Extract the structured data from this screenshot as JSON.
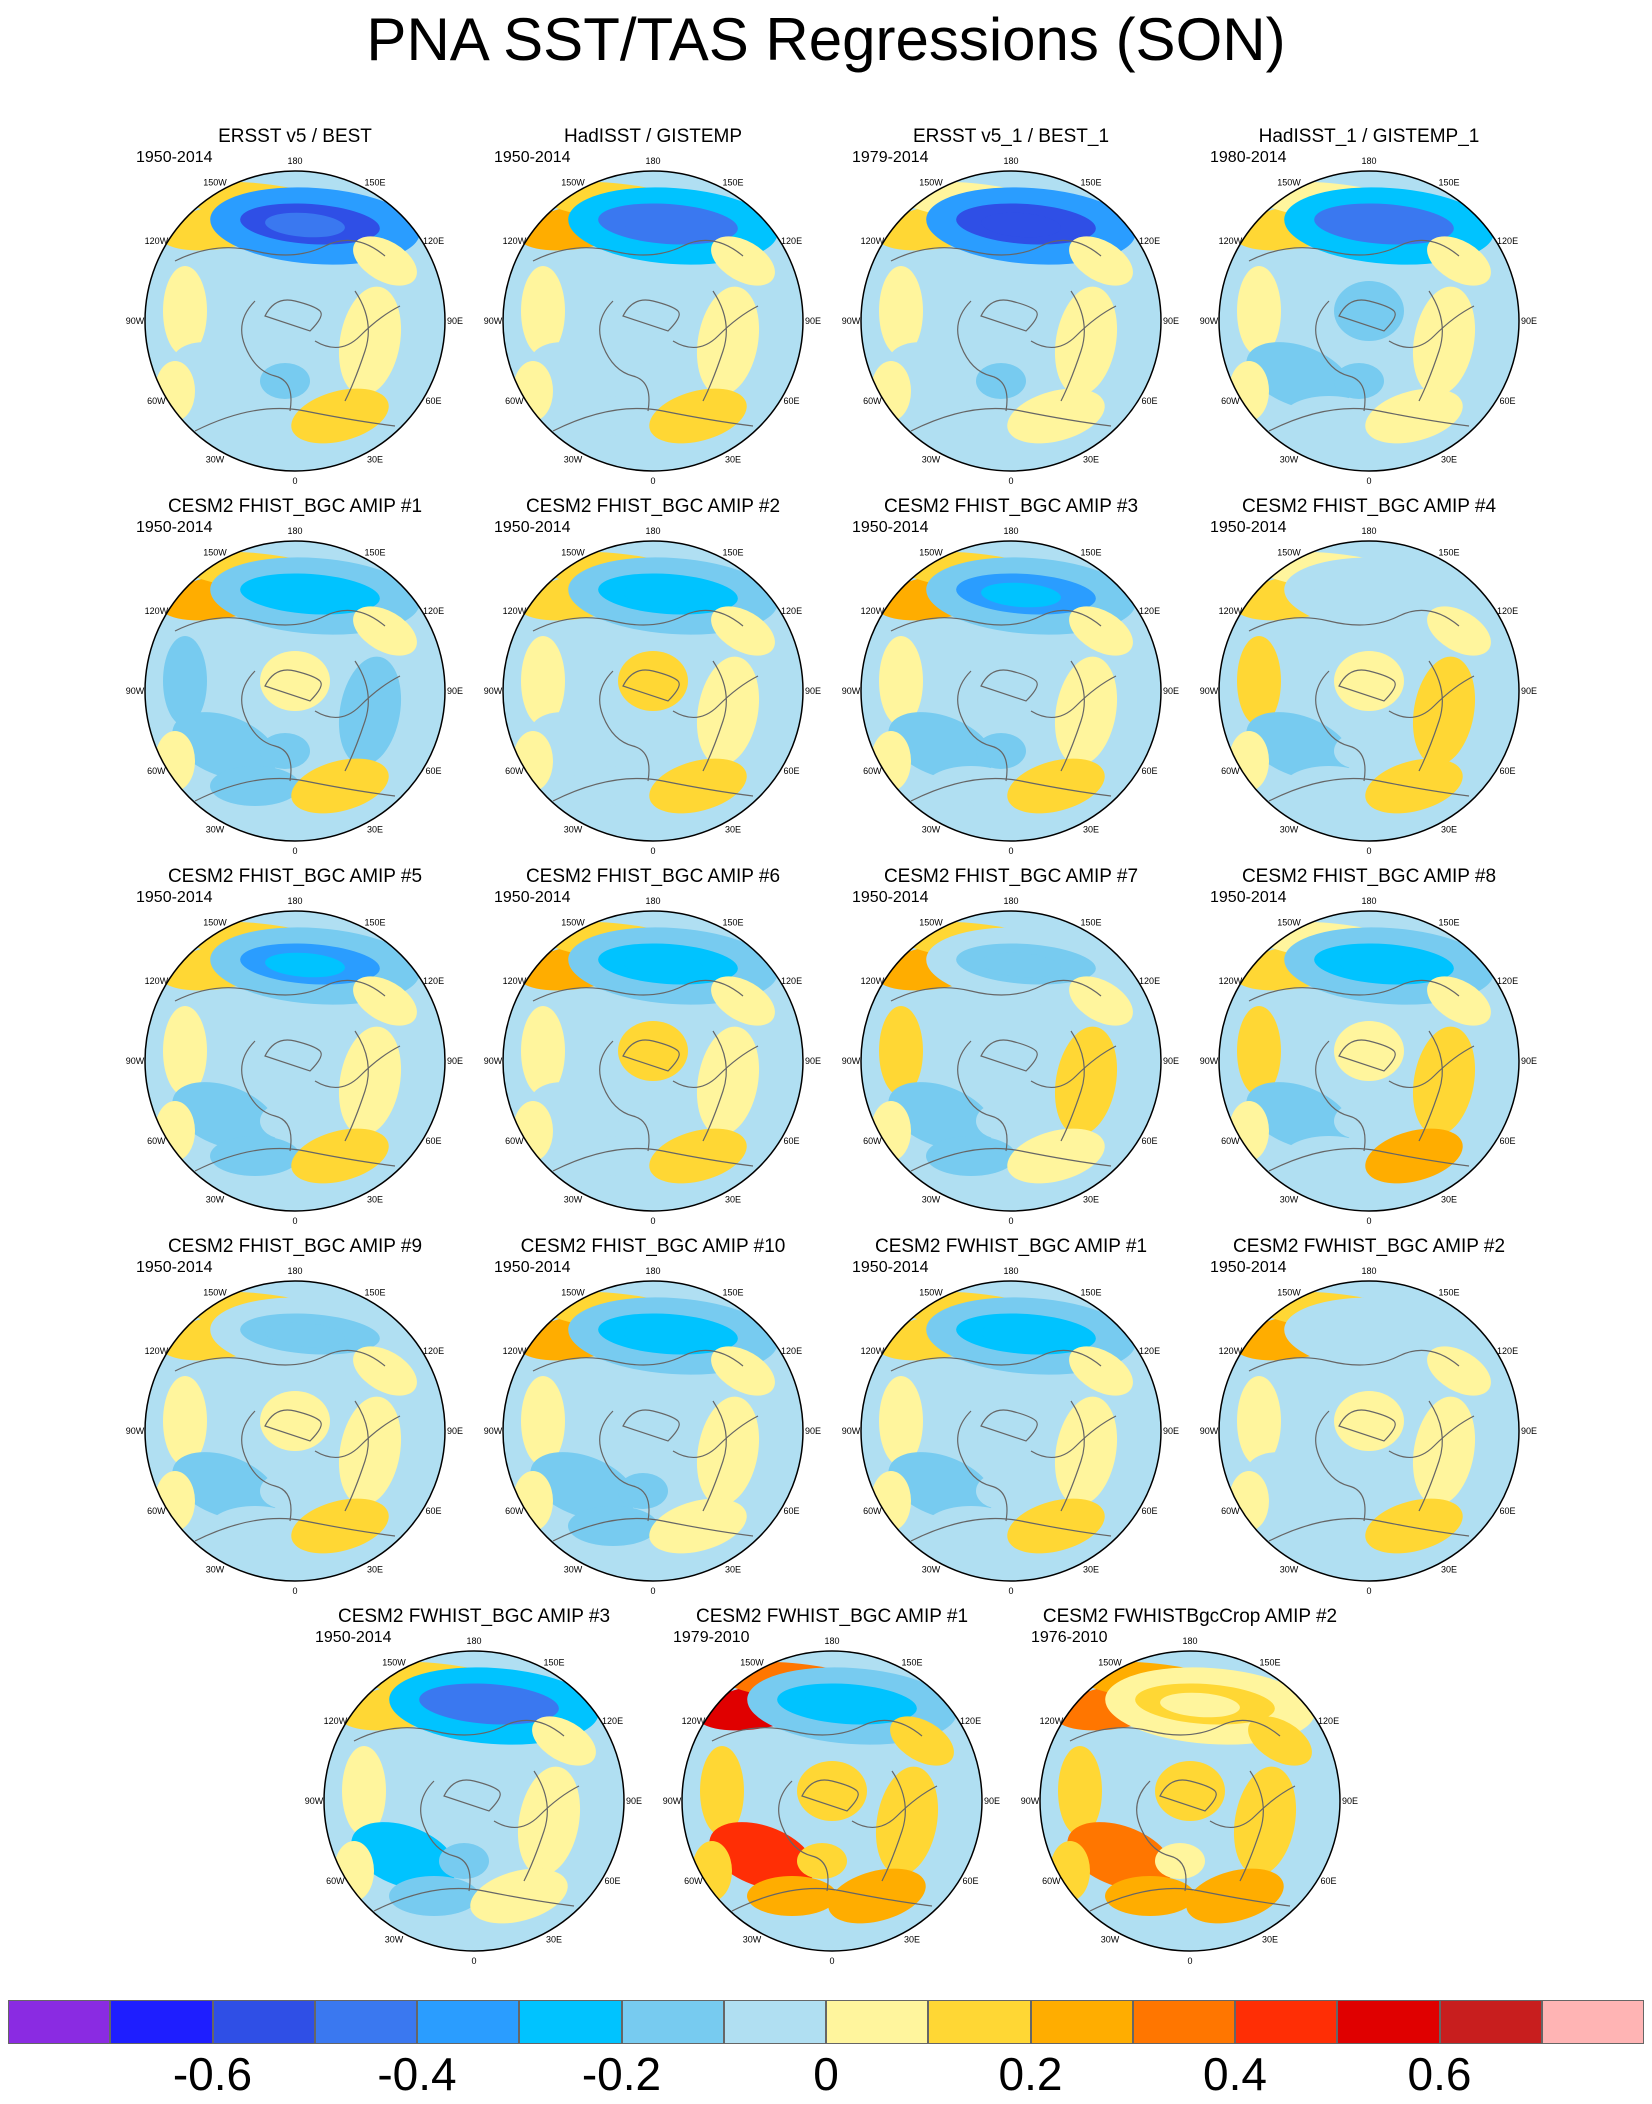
{
  "title": "PNA SST/TAS Regressions (SON)",
  "longitude_labels": [
    "180",
    "150E",
    "120E",
    "90E",
    "60E",
    "30E",
    "0",
    "30W",
    "60W",
    "90W",
    "120W",
    "150W"
  ],
  "panels": [
    {
      "title": "ERSST v5 / BEST",
      "period": "1950-2014",
      "pattern": [
        -0.55,
        0.15,
        0.05,
        -0.05,
        -0.1,
        0.1,
        -0.15,
        0.05
      ]
    },
    {
      "title": "HadISST / GISTEMP",
      "period": "1950-2014",
      "pattern": [
        -0.5,
        0.2,
        0.05,
        -0.05,
        -0.05,
        0.1,
        -0.1,
        0.05
      ]
    },
    {
      "title": "ERSST v5_1 / BEST_1",
      "period": "1979-2014",
      "pattern": [
        -0.6,
        0.1,
        0.0,
        -0.1,
        -0.1,
        0.05,
        -0.15,
        0.05
      ]
    },
    {
      "title": "HadISST_1 / GISTEMP_1",
      "period": "1980-2014",
      "pattern": [
        -0.5,
        0.1,
        0.0,
        -0.15,
        -0.15,
        0.05,
        -0.2,
        0.05
      ]
    },
    {
      "title": "CESM2 FHIST_BGC AMIP #1",
      "period": "1950-2014",
      "pattern": [
        -0.25,
        0.2,
        -0.15,
        0.05,
        -0.2,
        0.1,
        -0.15,
        0.05
      ]
    },
    {
      "title": "CESM2 FHIST_BGC AMIP #2",
      "period": "1950-2014",
      "pattern": [
        -0.25,
        0.15,
        0.05,
        0.1,
        -0.1,
        0.1,
        -0.1,
        0.05
      ]
    },
    {
      "title": "CESM2 FHIST_BGC AMIP #3",
      "period": "1950-2014",
      "pattern": [
        -0.35,
        0.25,
        0.05,
        -0.05,
        -0.15,
        0.1,
        -0.15,
        0.05
      ]
    },
    {
      "title": "CESM2 FHIST_BGC AMIP #4",
      "period": "1950-2014",
      "pattern": [
        -0.1,
        0.1,
        0.1,
        0.05,
        -0.15,
        0.1,
        -0.1,
        0.05
      ]
    },
    {
      "title": "CESM2 FHIST_BGC AMIP #5",
      "period": "1950-2014",
      "pattern": [
        -0.35,
        0.15,
        0.05,
        -0.05,
        -0.2,
        0.1,
        -0.1,
        0.05
      ]
    },
    {
      "title": "CESM2 FHIST_BGC AMIP #6",
      "period": "1950-2014",
      "pattern": [
        -0.3,
        0.2,
        0.05,
        0.1,
        -0.1,
        0.1,
        -0.1,
        0.05
      ]
    },
    {
      "title": "CESM2 FHIST_BGC AMIP #7",
      "period": "1950-2014",
      "pattern": [
        -0.15,
        0.25,
        0.1,
        -0.05,
        -0.2,
        0.05,
        -0.1,
        0.05
      ]
    },
    {
      "title": "CESM2 FHIST_BGC AMIP #8",
      "period": "1950-2014",
      "pattern": [
        -0.3,
        0.1,
        0.1,
        0.05,
        -0.15,
        0.2,
        -0.1,
        0.05
      ]
    },
    {
      "title": "CESM2 FHIST_BGC AMIP #9",
      "period": "1950-2014",
      "pattern": [
        -0.15,
        0.15,
        0.05,
        0.05,
        -0.15,
        0.1,
        -0.1,
        0.05
      ]
    },
    {
      "title": "CESM2 FHIST_BGC AMIP #10",
      "period": "1950-2014",
      "pattern": [
        -0.3,
        0.2,
        0.0,
        -0.05,
        -0.2,
        0.05,
        -0.15,
        0.05
      ]
    },
    {
      "title": "CESM2 FWHIST_BGC AMIP #1",
      "period": "1950-2014",
      "pattern": [
        -0.3,
        0.15,
        0.05,
        -0.05,
        -0.15,
        0.1,
        -0.1,
        0.05
      ]
    },
    {
      "title": "CESM2 FWHIST_BGC AMIP #2",
      "period": "1950-2014",
      "pattern": [
        -0.1,
        0.2,
        0.05,
        0.05,
        -0.1,
        0.1,
        -0.1,
        0.05
      ]
    },
    {
      "title": "CESM2 FWHIST_BGC AMIP #3",
      "period": "1950-2014",
      "pattern": [
        -0.5,
        0.15,
        0.0,
        -0.1,
        -0.25,
        0.05,
        -0.2,
        0.05
      ]
    },
    {
      "title": "CESM2 FWHIST_BGC AMIP #1",
      "period": "1979-2010",
      "pattern": [
        -0.3,
        0.5,
        0.1,
        0.1,
        0.45,
        0.2,
        0.1,
        0.1
      ]
    },
    {
      "title": "CESM2 FWHISTBgcCrop AMIP #2",
      "period": "1976-2010",
      "pattern": [
        0.1,
        0.3,
        0.1,
        0.1,
        0.35,
        0.2,
        0.05,
        0.1
      ]
    }
  ],
  "colorbar": {
    "colors": [
      "#8a2be2",
      "#1e1eff",
      "#2f4fe6",
      "#3a78f0",
      "#2a9dff",
      "#00c3ff",
      "#77cbf0",
      "#b0dff2",
      "#fff59d",
      "#ffd734",
      "#ffad00",
      "#ff7600",
      "#ff2e05",
      "#e00000",
      "#c81e1e",
      "#ffb4b4"
    ],
    "labels": [
      "-0.6",
      "-0.4",
      "-0.2",
      "0",
      "0.2",
      "0.4",
      "0.6"
    ]
  }
}
